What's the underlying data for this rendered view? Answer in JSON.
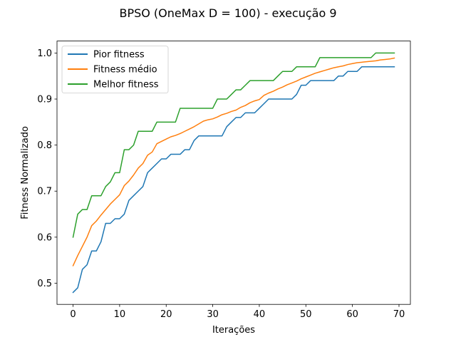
{
  "chart_data": {
    "type": "line",
    "title": "BPSO (OneMax D = 100) - execução 9",
    "xlabel": "Iterações",
    "ylabel": "Fitness Normalizado",
    "xlim": [
      -3.45,
      72.45
    ],
    "ylim": [
      0.454,
      1.026
    ],
    "xticks": [
      0,
      10,
      20,
      30,
      40,
      50,
      60,
      70
    ],
    "yticks": [
      0.5,
      0.6,
      0.7,
      0.8,
      0.9,
      1.0
    ],
    "ytick_labels": [
      "0.5",
      "0.6",
      "0.7",
      "0.8",
      "0.9",
      "1.0"
    ],
    "grid": false,
    "legend_position": "upper left",
    "x": [
      0,
      1,
      2,
      3,
      4,
      5,
      6,
      7,
      8,
      9,
      10,
      11,
      12,
      13,
      14,
      15,
      16,
      17,
      18,
      19,
      20,
      21,
      22,
      23,
      24,
      25,
      26,
      27,
      28,
      29,
      30,
      31,
      32,
      33,
      34,
      35,
      36,
      37,
      38,
      39,
      40,
      41,
      42,
      43,
      44,
      45,
      46,
      47,
      48,
      49,
      50,
      51,
      52,
      53,
      54,
      55,
      56,
      57,
      58,
      59,
      60,
      61,
      62,
      63,
      64,
      65,
      66,
      67,
      68,
      69
    ],
    "series": [
      {
        "name": "Pior fitness",
        "color": "#1f77b4",
        "values": [
          0.48,
          0.49,
          0.53,
          0.54,
          0.57,
          0.57,
          0.59,
          0.63,
          0.63,
          0.64,
          0.64,
          0.65,
          0.68,
          0.69,
          0.7,
          0.71,
          0.74,
          0.75,
          0.76,
          0.77,
          0.77,
          0.78,
          0.78,
          0.78,
          0.79,
          0.79,
          0.81,
          0.82,
          0.82,
          0.82,
          0.82,
          0.82,
          0.82,
          0.84,
          0.85,
          0.86,
          0.86,
          0.87,
          0.87,
          0.87,
          0.88,
          0.89,
          0.9,
          0.9,
          0.9,
          0.9,
          0.9,
          0.9,
          0.91,
          0.93,
          0.93,
          0.94,
          0.94,
          0.94,
          0.94,
          0.94,
          0.94,
          0.95,
          0.95,
          0.96,
          0.96,
          0.96,
          0.97,
          0.97,
          0.97,
          0.97,
          0.97,
          0.97,
          0.97,
          0.97
        ]
      },
      {
        "name": "Fitness médio",
        "color": "#ff7f0e",
        "values": [
          0.538,
          0.56,
          0.58,
          0.6,
          0.625,
          0.635,
          0.648,
          0.66,
          0.672,
          0.682,
          0.692,
          0.712,
          0.722,
          0.735,
          0.75,
          0.76,
          0.778,
          0.785,
          0.803,
          0.808,
          0.813,
          0.818,
          0.821,
          0.825,
          0.83,
          0.835,
          0.84,
          0.846,
          0.852,
          0.855,
          0.857,
          0.861,
          0.866,
          0.869,
          0.873,
          0.876,
          0.882,
          0.886,
          0.892,
          0.896,
          0.899,
          0.908,
          0.913,
          0.917,
          0.922,
          0.926,
          0.931,
          0.935,
          0.939,
          0.944,
          0.948,
          0.952,
          0.956,
          0.959,
          0.962,
          0.965,
          0.968,
          0.97,
          0.972,
          0.975,
          0.977,
          0.979,
          0.98,
          0.981,
          0.982,
          0.983,
          0.985,
          0.986,
          0.987,
          0.989
        ]
      },
      {
        "name": "Melhor fitness",
        "color": "#2ca02c",
        "values": [
          0.6,
          0.65,
          0.66,
          0.66,
          0.69,
          0.69,
          0.69,
          0.71,
          0.72,
          0.74,
          0.74,
          0.79,
          0.79,
          0.8,
          0.83,
          0.83,
          0.83,
          0.83,
          0.85,
          0.85,
          0.85,
          0.85,
          0.85,
          0.88,
          0.88,
          0.88,
          0.88,
          0.88,
          0.88,
          0.88,
          0.88,
          0.9,
          0.9,
          0.9,
          0.91,
          0.92,
          0.92,
          0.93,
          0.94,
          0.94,
          0.94,
          0.94,
          0.94,
          0.94,
          0.95,
          0.96,
          0.96,
          0.96,
          0.97,
          0.97,
          0.97,
          0.97,
          0.97,
          0.99,
          0.99,
          0.99,
          0.99,
          0.99,
          0.99,
          0.99,
          0.99,
          0.99,
          0.99,
          0.99,
          0.99,
          1.0,
          1.0,
          1.0,
          1.0,
          1.0
        ]
      }
    ]
  }
}
